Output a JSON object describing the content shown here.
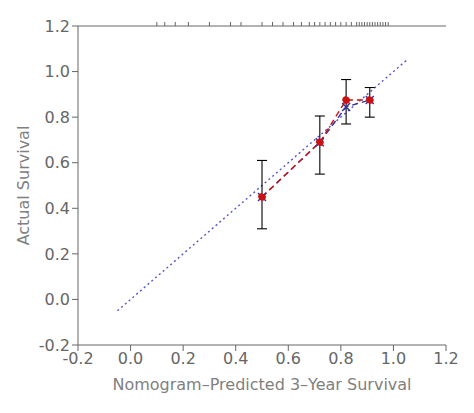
{
  "chart_data": {
    "type": "line",
    "xlabel": "Nomogram–Predicted 3–Year Survival",
    "ylabel": "Actual Survival",
    "xlim": [
      -0.2,
      1.2
    ],
    "ylim": [
      -0.2,
      1.2
    ],
    "xticks": [
      -0.2,
      {
        "value": 0,
        "label": "0.0"
      },
      0.2,
      0.4,
      0.6,
      0.8,
      {
        "value": 1,
        "label": "1.0"
      },
      1.2
    ],
    "yticks": [
      -0.2,
      {
        "value": 0,
        "label": "0.0"
      },
      0.2,
      0.4,
      0.6,
      0.8,
      {
        "value": 1,
        "label": "1.0"
      },
      1.2
    ],
    "series": [
      {
        "type": "line",
        "color": "#5555cc",
        "line_style": "dotted",
        "x": [
          -0.05,
          1.05
        ],
        "values": [
          -0.05,
          1.05
        ]
      },
      {
        "type": "line",
        "color": "#333399",
        "line_style": "dashed",
        "marker": "x",
        "x": [
          0.5,
          0.72,
          0.82,
          0.91
        ],
        "values": [
          0.45,
          0.69,
          0.845,
          0.875
        ]
      },
      {
        "type": "line",
        "color": "#cc1111",
        "line_style": "dashed",
        "marker": "o",
        "x": [
          0.5,
          0.72,
          0.82,
          0.91
        ],
        "values": [
          0.45,
          0.69,
          0.875,
          0.875
        ]
      }
    ],
    "error_bars": {
      "x": [
        0.5,
        0.72,
        0.82,
        0.91
      ],
      "values": [
        0.45,
        0.69,
        0.875,
        0.875
      ],
      "minus": [
        0.14,
        0.14,
        0.105,
        0.075
      ],
      "plus": [
        0.16,
        0.115,
        0.09,
        0.055
      ]
    },
    "rug": [
      0.1,
      0.13,
      0.17,
      0.22,
      0.3,
      0.38,
      0.42,
      0.5,
      0.54,
      0.58,
      0.62,
      0.65,
      0.68,
      0.7,
      0.72,
      0.74,
      0.76,
      0.78,
      0.8,
      0.82,
      0.84,
      0.86,
      0.87,
      0.88,
      0.89,
      0.9,
      0.91,
      0.92,
      0.93,
      0.94,
      0.95,
      0.96,
      0.97,
      0.98
    ]
  }
}
